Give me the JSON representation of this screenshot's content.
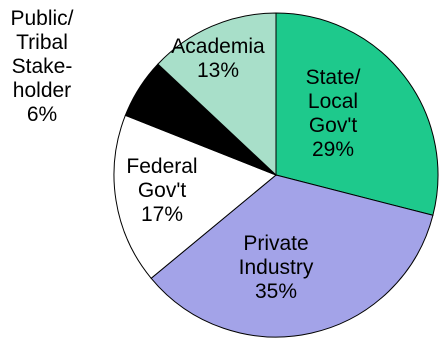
{
  "chart_data": {
    "type": "pie",
    "title": "",
    "slices": [
      {
        "label_lines": [
          "State/",
          "Local",
          "Gov't"
        ],
        "value": 29,
        "value_label": "29%",
        "color": "#1ec98c"
      },
      {
        "label_lines": [
          "Private",
          "Industry"
        ],
        "value": 35,
        "value_label": "35%",
        "color": "#a3a3e8"
      },
      {
        "label_lines": [
          "Federal",
          "Gov't"
        ],
        "value": 17,
        "value_label": "17%",
        "color": "#ffffff"
      },
      {
        "label_lines": [
          "Public/",
          "Tribal",
          "Stake-",
          "holder"
        ],
        "value": 6,
        "value_label": "6%",
        "color": "#000000"
      },
      {
        "label_lines": [
          "Academia"
        ],
        "value": 13,
        "value_label": "13%",
        "color": "#a8dfc9"
      }
    ],
    "start_angle": "12 o'clock",
    "direction": "clockwise",
    "legend": "none"
  }
}
